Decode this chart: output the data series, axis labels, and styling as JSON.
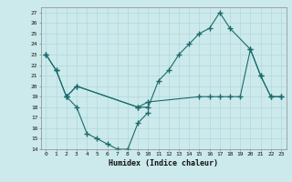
{
  "bg_color": "#cce9ec",
  "line_color": "#1a6b6b",
  "xlabel": "Humidex (Indice chaleur)",
  "xlim": [
    -0.5,
    23.5
  ],
  "ylim": [
    14,
    27.5
  ],
  "yticks": [
    14,
    15,
    16,
    17,
    18,
    19,
    20,
    21,
    22,
    23,
    24,
    25,
    26,
    27
  ],
  "xticks": [
    0,
    1,
    2,
    3,
    4,
    5,
    6,
    7,
    8,
    9,
    10,
    11,
    12,
    13,
    14,
    15,
    16,
    17,
    18,
    19,
    20,
    21,
    22,
    23
  ],
  "series": [
    {
      "x": [
        0,
        1,
        2,
        3,
        4,
        5,
        6,
        7,
        8,
        9,
        10
      ],
      "y": [
        23,
        21.5,
        19,
        18,
        15.5,
        15,
        14.5,
        14,
        14,
        16.5,
        17.5
      ]
    },
    {
      "x": [
        0,
        1,
        2,
        3,
        9,
        10,
        11,
        12,
        13,
        14,
        15,
        16,
        17,
        18,
        20,
        21,
        22,
        23
      ],
      "y": [
        23,
        21.5,
        19,
        20,
        18,
        18,
        20.5,
        21.5,
        23,
        24,
        25,
        25.5,
        27,
        25.5,
        23.5,
        21,
        19,
        19
      ]
    },
    {
      "x": [
        2,
        3,
        9,
        10,
        15,
        16,
        17,
        18,
        19,
        20,
        21,
        22,
        23
      ],
      "y": [
        19,
        20,
        18,
        18.5,
        19,
        19,
        19,
        19,
        19,
        23.5,
        21,
        19,
        19
      ]
    }
  ]
}
